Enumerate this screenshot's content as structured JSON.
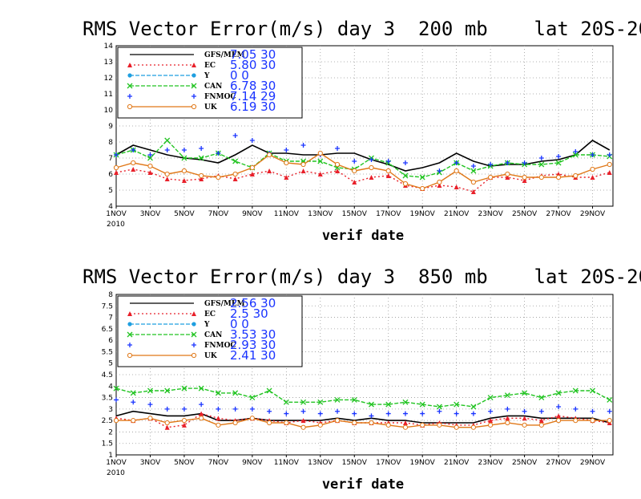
{
  "chart_data": [
    {
      "type": "line",
      "title": "RMS Vector Error(m/s) day 3  200 mb    lat 20S-20N",
      "xlabel": "verif date",
      "ylim": [
        4,
        14
      ],
      "yticks": [
        "4",
        "5",
        "6",
        "7",
        "8",
        "9",
        "10",
        "11",
        "12",
        "13",
        "14"
      ],
      "xticks": [
        "1NOV",
        "3NOV",
        "5NOV",
        "7NOV",
        "9NOV",
        "11NOV",
        "13NOV",
        "15NOV",
        "17NOV",
        "19NOV",
        "21NOV",
        "23NOV",
        "25NOV",
        "27NOV",
        "29NOV"
      ],
      "year_label": "2010",
      "days": [
        1,
        2,
        3,
        4,
        5,
        6,
        7,
        8,
        9,
        10,
        11,
        12,
        13,
        14,
        15,
        16,
        17,
        18,
        19,
        20,
        21,
        22,
        23,
        24,
        25,
        26,
        27,
        28,
        29,
        30
      ],
      "legend_placement": "top-left",
      "grid": true,
      "series": [
        {
          "name": "GFS/MEM",
          "stat": "7.05 30",
          "color": "#000000",
          "style": "solid",
          "marker": "none",
          "values": [
            7.2,
            7.8,
            7.5,
            7.2,
            7.0,
            6.9,
            6.7,
            7.2,
            7.8,
            7.3,
            7.3,
            7.2,
            7.2,
            7.3,
            7.3,
            6.9,
            6.6,
            6.2,
            6.4,
            6.7,
            7.3,
            6.8,
            6.5,
            6.6,
            6.6,
            6.8,
            6.9,
            7.2,
            8.1,
            7.5
          ]
        },
        {
          "name": "EC",
          "stat": "5.80 30",
          "color": "#e8202a",
          "style": "dotted",
          "marker": "triangle",
          "values": [
            6.1,
            6.3,
            6.1,
            5.7,
            5.6,
            5.7,
            5.9,
            5.7,
            6.0,
            6.2,
            5.8,
            6.2,
            6.0,
            6.2,
            5.5,
            5.8,
            5.9,
            5.3,
            5.1,
            5.3,
            5.2,
            4.9,
            5.8,
            5.8,
            5.6,
            5.9,
            6.0,
            5.8,
            5.8,
            6.1
          ]
        },
        {
          "name": "Y",
          "stat": "0 0",
          "color": "#1f9fe0",
          "style": "dashed",
          "marker": "dot",
          "values": []
        },
        {
          "name": "CAN",
          "stat": "6.78 30",
          "color": "#22c422",
          "style": "dashed",
          "marker": "x",
          "values": [
            7.2,
            7.5,
            7.0,
            8.1,
            7.0,
            7.0,
            7.3,
            6.8,
            6.4,
            7.3,
            6.8,
            6.8,
            6.8,
            6.4,
            6.3,
            7.0,
            6.7,
            5.9,
            5.8,
            6.1,
            6.7,
            6.2,
            6.5,
            6.7,
            6.6,
            6.6,
            6.7,
            7.2,
            7.2,
            7.1
          ]
        },
        {
          "name": "FNMOC",
          "stat": "7.14 29",
          "color": "#1a34ff",
          "style": "none",
          "marker": "plus",
          "values": [
            7.2,
            7.5,
            7.2,
            7.5,
            7.5,
            7.6,
            7.3,
            8.4,
            8.1,
            7.3,
            7.5,
            7.8,
            7.2,
            7.6,
            6.8,
            6.9,
            6.8,
            6.7,
            null,
            6.2,
            6.7,
            6.5,
            6.6,
            6.7,
            6.7,
            7.0,
            7.1,
            7.4,
            7.2,
            7.2
          ]
        },
        {
          "name": "UK",
          "stat": "6.19 30",
          "color": "#e07818",
          "style": "solid",
          "marker": "circle",
          "values": [
            6.4,
            6.7,
            6.5,
            6.0,
            6.2,
            5.9,
            5.8,
            6.0,
            6.4,
            7.2,
            6.7,
            6.6,
            7.3,
            6.6,
            6.2,
            6.4,
            6.2,
            5.4,
            5.1,
            5.5,
            6.2,
            5.5,
            5.8,
            6.0,
            5.8,
            5.8,
            5.8,
            5.9,
            6.3,
            6.6
          ]
        }
      ]
    },
    {
      "type": "line",
      "title": "RMS Vector Error(m/s) day 3  850 mb    lat 20S-20N",
      "xlabel": "verif date",
      "ylim": [
        1,
        8
      ],
      "yticks": [
        "1",
        "1.5",
        "2",
        "2.5",
        "3",
        "3.5",
        "4",
        "4.5",
        "5",
        "5.5",
        "6",
        "6.5",
        "7",
        "7.5",
        "8"
      ],
      "xticks": [
        "1NOV",
        "3NOV",
        "5NOV",
        "7NOV",
        "9NOV",
        "11NOV",
        "13NOV",
        "15NOV",
        "17NOV",
        "19NOV",
        "21NOV",
        "23NOV",
        "25NOV",
        "27NOV",
        "29NOV"
      ],
      "year_label": "2010",
      "days": [
        1,
        2,
        3,
        4,
        5,
        6,
        7,
        8,
        9,
        10,
        11,
        12,
        13,
        14,
        15,
        16,
        17,
        18,
        19,
        20,
        21,
        22,
        23,
        24,
        25,
        26,
        27,
        28,
        29,
        30
      ],
      "legend_placement": "top-left",
      "grid": true,
      "series": [
        {
          "name": "GFS/MEM",
          "stat": "2.56 30",
          "color": "#000000",
          "style": "solid",
          "marker": "none",
          "values": [
            2.7,
            2.9,
            2.8,
            2.7,
            2.7,
            2.8,
            2.5,
            2.5,
            2.6,
            2.5,
            2.5,
            2.5,
            2.5,
            2.6,
            2.5,
            2.6,
            2.5,
            2.5,
            2.4,
            2.4,
            2.4,
            2.4,
            2.6,
            2.7,
            2.7,
            2.6,
            2.6,
            2.6,
            2.6,
            2.4
          ]
        },
        {
          "name": "EC",
          "stat": "2.5 30",
          "color": "#e8202a",
          "style": "dotted",
          "marker": "triangle",
          "values": [
            2.6,
            2.5,
            2.6,
            2.2,
            2.3,
            2.8,
            2.6,
            2.5,
            2.6,
            2.5,
            2.4,
            2.5,
            2.4,
            2.5,
            2.4,
            2.4,
            2.4,
            2.4,
            2.3,
            2.4,
            2.3,
            2.3,
            2.5,
            2.6,
            2.6,
            2.5,
            2.7,
            2.6,
            2.5,
            2.4
          ]
        },
        {
          "name": "Y",
          "stat": "0 0",
          "color": "#1f9fe0",
          "style": "dashed",
          "marker": "dot",
          "values": []
        },
        {
          "name": "CAN",
          "stat": "3.53 30",
          "color": "#22c422",
          "style": "dashed",
          "marker": "x",
          "values": [
            3.9,
            3.7,
            3.8,
            3.8,
            3.9,
            3.9,
            3.7,
            3.7,
            3.5,
            3.8,
            3.3,
            3.3,
            3.3,
            3.4,
            3.4,
            3.2,
            3.2,
            3.3,
            3.2,
            3.1,
            3.2,
            3.1,
            3.5,
            3.6,
            3.7,
            3.5,
            3.7,
            3.8,
            3.8,
            3.4
          ]
        },
        {
          "name": "FNMOC",
          "stat": "2.93 30",
          "color": "#1a34ff",
          "style": "none",
          "marker": "plus",
          "values": [
            3.4,
            3.3,
            3.2,
            3.0,
            3.0,
            3.2,
            3.0,
            3.0,
            3.0,
            2.9,
            2.8,
            2.9,
            2.8,
            2.9,
            2.8,
            2.7,
            2.8,
            2.8,
            2.8,
            2.9,
            2.8,
            2.8,
            2.9,
            3.0,
            2.9,
            2.9,
            3.1,
            3.0,
            2.9,
            2.9
          ]
        },
        {
          "name": "UK",
          "stat": "2.41 30",
          "color": "#e07818",
          "style": "solid",
          "marker": "circle",
          "values": [
            2.5,
            2.5,
            2.6,
            2.4,
            2.5,
            2.6,
            2.3,
            2.4,
            2.6,
            2.4,
            2.4,
            2.2,
            2.3,
            2.5,
            2.4,
            2.4,
            2.3,
            2.2,
            2.3,
            2.3,
            2.2,
            2.2,
            2.3,
            2.4,
            2.3,
            2.3,
            2.5,
            2.5,
            2.5,
            2.5
          ]
        }
      ]
    }
  ]
}
